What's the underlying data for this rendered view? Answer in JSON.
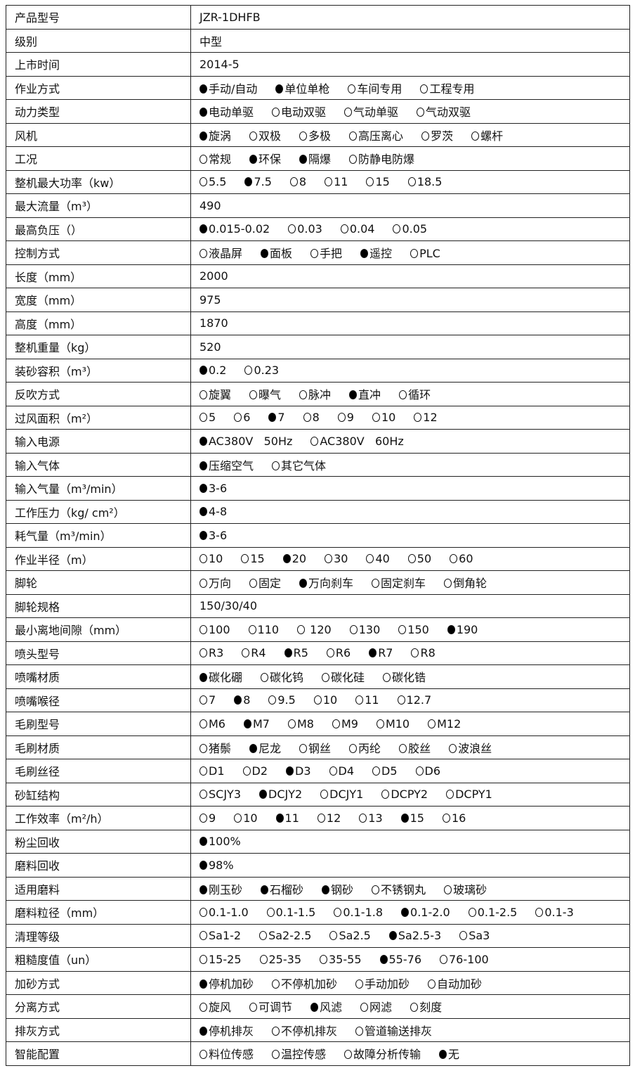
{
  "rows": [
    {
      "label": "产品型号",
      "value": "JZR-1DHFB"
    },
    {
      "label": "级别",
      "value": "中型"
    },
    {
      "label": "上市时间",
      "value": "2014-5"
    },
    {
      "label": "作业方式",
      "options": [
        {
          "text": "手动/自动",
          "selected": true
        },
        {
          "text": "单位单枪",
          "selected": true
        },
        {
          "text": "车间专用",
          "selected": false
        },
        {
          "text": "工程专用",
          "selected": false
        }
      ]
    },
    {
      "label": "动力类型",
      "options": [
        {
          "text": "电动单驱",
          "selected": true
        },
        {
          "text": "电动双驱",
          "selected": false
        },
        {
          "text": "气动单驱",
          "selected": false
        },
        {
          "text": "气动双驱",
          "selected": false
        }
      ]
    },
    {
      "label": "风机",
      "options": [
        {
          "text": "旋涡",
          "selected": true
        },
        {
          "text": "双极",
          "selected": false
        },
        {
          "text": "多极",
          "selected": false
        },
        {
          "text": "高压离心",
          "selected": false
        },
        {
          "text": "罗茨",
          "selected": false
        },
        {
          "text": "螺杆",
          "selected": false
        }
      ]
    },
    {
      "label": "工况",
      "options": [
        {
          "text": "常规",
          "selected": false
        },
        {
          "text": "环保",
          "selected": true
        },
        {
          "text": "隔爆",
          "selected": true
        },
        {
          "text": "防静电防爆",
          "selected": false
        }
      ]
    },
    {
      "label": "整机最大功率（kw）",
      "options": [
        {
          "text": "5.5",
          "selected": false
        },
        {
          "text": "7.5",
          "selected": true
        },
        {
          "text": "8",
          "selected": false
        },
        {
          "text": "11",
          "selected": false
        },
        {
          "text": "15",
          "selected": false
        },
        {
          "text": "18.5",
          "selected": false
        }
      ]
    },
    {
      "label": "最大流量（m³）",
      "value": "490"
    },
    {
      "label": "最高负压（）",
      "options": [
        {
          "text": "0.015-0.02",
          "selected": true
        },
        {
          "text": "0.03",
          "selected": false
        },
        {
          "text": "0.04",
          "selected": false
        },
        {
          "text": "0.05",
          "selected": false
        }
      ]
    },
    {
      "label": "控制方式",
      "options": [
        {
          "text": "液晶屏",
          "selected": false
        },
        {
          "text": "面板",
          "selected": true
        },
        {
          "text": "手把",
          "selected": false
        },
        {
          "text": "遥控",
          "selected": true
        },
        {
          "text": "PLC",
          "selected": false
        }
      ]
    },
    {
      "label": "长度（mm）",
      "value": "2000"
    },
    {
      "label": "宽度（mm）",
      "value": "975"
    },
    {
      "label": "高度（mm）",
      "value": "1870"
    },
    {
      "label": "整机重量（kg）",
      "value": "520"
    },
    {
      "label": "装砂容积（m³）",
      "options": [
        {
          "text": "0.2",
          "selected": true
        },
        {
          "text": "0.23",
          "selected": false
        }
      ]
    },
    {
      "label": "反吹方式",
      "options": [
        {
          "text": "旋翼",
          "selected": false
        },
        {
          "text": "曝气",
          "selected": false
        },
        {
          "text": "脉冲",
          "selected": false
        },
        {
          "text": "直冲",
          "selected": true
        },
        {
          "text": "循环",
          "selected": false
        }
      ]
    },
    {
      "label": "过风面积（m²）",
      "options": [
        {
          "text": "5",
          "selected": false
        },
        {
          "text": "6",
          "selected": false
        },
        {
          "text": "7",
          "selected": true
        },
        {
          "text": "8",
          "selected": false
        },
        {
          "text": "9",
          "selected": false
        },
        {
          "text": "10",
          "selected": false
        },
        {
          "text": "12",
          "selected": false
        }
      ]
    },
    {
      "label": "输入电源",
      "options": [
        {
          "text": "AC380V   50Hz",
          "selected": true
        },
        {
          "text": "AC380V   60Hz",
          "selected": false
        }
      ]
    },
    {
      "label": "输入气体",
      "options": [
        {
          "text": "压缩空气",
          "selected": true
        },
        {
          "text": "其它气体",
          "selected": false
        }
      ]
    },
    {
      "label": "输入气量（m³/min）",
      "options": [
        {
          "text": "3-6",
          "selected": true
        }
      ]
    },
    {
      "label": "工作压力（kg/ cm²）",
      "options": [
        {
          "text": "4-8",
          "selected": true
        }
      ]
    },
    {
      "label": "耗气量（m³/min）",
      "options": [
        {
          "text": "3-6",
          "selected": true
        }
      ]
    },
    {
      "label": "作业半径（m）",
      "options": [
        {
          "text": "10",
          "selected": false
        },
        {
          "text": "15",
          "selected": false
        },
        {
          "text": "20",
          "selected": true
        },
        {
          "text": "30",
          "selected": false
        },
        {
          "text": "40",
          "selected": false
        },
        {
          "text": "50",
          "selected": false
        },
        {
          "text": "60",
          "selected": false
        }
      ]
    },
    {
      "label": "脚轮",
      "options": [
        {
          "text": "万向",
          "selected": false
        },
        {
          "text": "固定",
          "selected": false
        },
        {
          "text": "万向刹车",
          "selected": true
        },
        {
          "text": "固定刹车",
          "selected": false
        },
        {
          "text": "倒角轮",
          "selected": false
        }
      ]
    },
    {
      "label": "脚轮规格",
      "value": "150/30/40"
    },
    {
      "label": "最小离地间隙（mm）",
      "options": [
        {
          "text": "100",
          "selected": false
        },
        {
          "text": "110",
          "selected": false
        },
        {
          "text": " 120",
          "selected": false
        },
        {
          "text": "130",
          "selected": false
        },
        {
          "text": "150",
          "selected": false
        },
        {
          "text": "190",
          "selected": true
        }
      ]
    },
    {
      "label": "喷头型号",
      "options": [
        {
          "text": "R3",
          "selected": false
        },
        {
          "text": "R4",
          "selected": false
        },
        {
          "text": "R5",
          "selected": true
        },
        {
          "text": "R6",
          "selected": false
        },
        {
          "text": "R7",
          "selected": true
        },
        {
          "text": "R8",
          "selected": false
        }
      ]
    },
    {
      "label": "喷嘴材质",
      "options": [
        {
          "text": "碳化硼",
          "selected": true
        },
        {
          "text": "碳化钨",
          "selected": false
        },
        {
          "text": "碳化硅",
          "selected": false
        },
        {
          "text": "碳化锆",
          "selected": false
        }
      ]
    },
    {
      "label": "喷嘴喉径",
      "options": [
        {
          "text": "7",
          "selected": false
        },
        {
          "text": "8",
          "selected": true
        },
        {
          "text": "9.5",
          "selected": false
        },
        {
          "text": "10",
          "selected": false
        },
        {
          "text": "11",
          "selected": false
        },
        {
          "text": "12.7",
          "selected": false
        }
      ]
    },
    {
      "label": "毛刷型号",
      "options": [
        {
          "text": "M6",
          "selected": false
        },
        {
          "text": "M7",
          "selected": true
        },
        {
          "text": "M8",
          "selected": false
        },
        {
          "text": "M9",
          "selected": false
        },
        {
          "text": "M10",
          "selected": false
        },
        {
          "text": "M12",
          "selected": false
        }
      ]
    },
    {
      "label": "毛刷材质",
      "options": [
        {
          "text": "猪鬃",
          "selected": false
        },
        {
          "text": "尼龙",
          "selected": true
        },
        {
          "text": "钢丝",
          "selected": false
        },
        {
          "text": "丙纶",
          "selected": false
        },
        {
          "text": "胶丝",
          "selected": false
        },
        {
          "text": "波浪丝",
          "selected": false
        }
      ]
    },
    {
      "label": "毛刷丝径",
      "options": [
        {
          "text": "D1",
          "selected": false
        },
        {
          "text": "D2",
          "selected": false
        },
        {
          "text": "D3",
          "selected": true
        },
        {
          "text": "D4",
          "selected": false
        },
        {
          "text": "D5",
          "selected": false
        },
        {
          "text": "D6",
          "selected": false
        }
      ]
    },
    {
      "label": "砂缸结构",
      "options": [
        {
          "text": "SCJY3",
          "selected": false
        },
        {
          "text": "DCJY2",
          "selected": true
        },
        {
          "text": "DCJY1",
          "selected": false
        },
        {
          "text": "DCPY2",
          "selected": false
        },
        {
          "text": "DCPY1",
          "selected": false
        }
      ]
    },
    {
      "label": "工作效率（m²/h）",
      "options": [
        {
          "text": "9",
          "selected": false
        },
        {
          "text": "10",
          "selected": false
        },
        {
          "text": "11",
          "selected": true
        },
        {
          "text": "12",
          "selected": false
        },
        {
          "text": "13",
          "selected": false
        },
        {
          "text": "15",
          "selected": true
        },
        {
          "text": "16",
          "selected": false
        }
      ]
    },
    {
      "label": "粉尘回收",
      "options": [
        {
          "text": "100%",
          "selected": true
        }
      ]
    },
    {
      "label": "磨料回收",
      "options": [
        {
          "text": "98%",
          "selected": true
        }
      ]
    },
    {
      "label": "适用磨料",
      "options": [
        {
          "text": "刚玉砂",
          "selected": true
        },
        {
          "text": "石榴砂",
          "selected": true
        },
        {
          "text": "钢砂",
          "selected": true
        },
        {
          "text": "不锈钢丸",
          "selected": false
        },
        {
          "text": "玻璃砂",
          "selected": false
        }
      ]
    },
    {
      "label": "磨料粒径（mm）",
      "options": [
        {
          "text": "0.1-1.0",
          "selected": false
        },
        {
          "text": "0.1-1.5",
          "selected": false
        },
        {
          "text": "0.1-1.8",
          "selected": false
        },
        {
          "text": "0.1-2.0",
          "selected": true
        },
        {
          "text": "0.1-2.5",
          "selected": false
        },
        {
          "text": "0.1-3",
          "selected": false
        }
      ]
    },
    {
      "label": "清理等级",
      "options": [
        {
          "text": "Sa1-2",
          "selected": false
        },
        {
          "text": "Sa2-2.5",
          "selected": false
        },
        {
          "text": "Sa2.5",
          "selected": false
        },
        {
          "text": "Sa2.5-3",
          "selected": true
        },
        {
          "text": "Sa3",
          "selected": false
        }
      ]
    },
    {
      "label": "粗糙度值（un）",
      "options": [
        {
          "text": "15-25",
          "selected": false
        },
        {
          "text": "25-35",
          "selected": false
        },
        {
          "text": "35-55",
          "selected": false
        },
        {
          "text": "55-76",
          "selected": true
        },
        {
          "text": "76-100",
          "selected": false
        }
      ]
    },
    {
      "label": "加砂方式",
      "options": [
        {
          "text": "停机加砂",
          "selected": true
        },
        {
          "text": "不停机加砂",
          "selected": false
        },
        {
          "text": "手动加砂",
          "selected": false
        },
        {
          "text": "自动加砂",
          "selected": false
        }
      ]
    },
    {
      "label": "分离方式",
      "options": [
        {
          "text": "旋风",
          "selected": false
        },
        {
          "text": "可调节",
          "selected": false
        },
        {
          "text": "风滤",
          "selected": true
        },
        {
          "text": "网滤",
          "selected": false
        },
        {
          "text": "刻度",
          "selected": false
        }
      ]
    },
    {
      "label": "排灰方式",
      "options": [
        {
          "text": "停机排灰",
          "selected": true
        },
        {
          "text": "不停机排灰",
          "selected": false
        },
        {
          "text": "管道输送排灰",
          "selected": false
        }
      ]
    },
    {
      "label": "智能配置",
      "options": [
        {
          "text": "料位传感",
          "selected": false
        },
        {
          "text": "温控传感",
          "selected": false
        },
        {
          "text": "故障分析传输",
          "selected": false
        },
        {
          "text": "无",
          "selected": true
        }
      ]
    }
  ]
}
